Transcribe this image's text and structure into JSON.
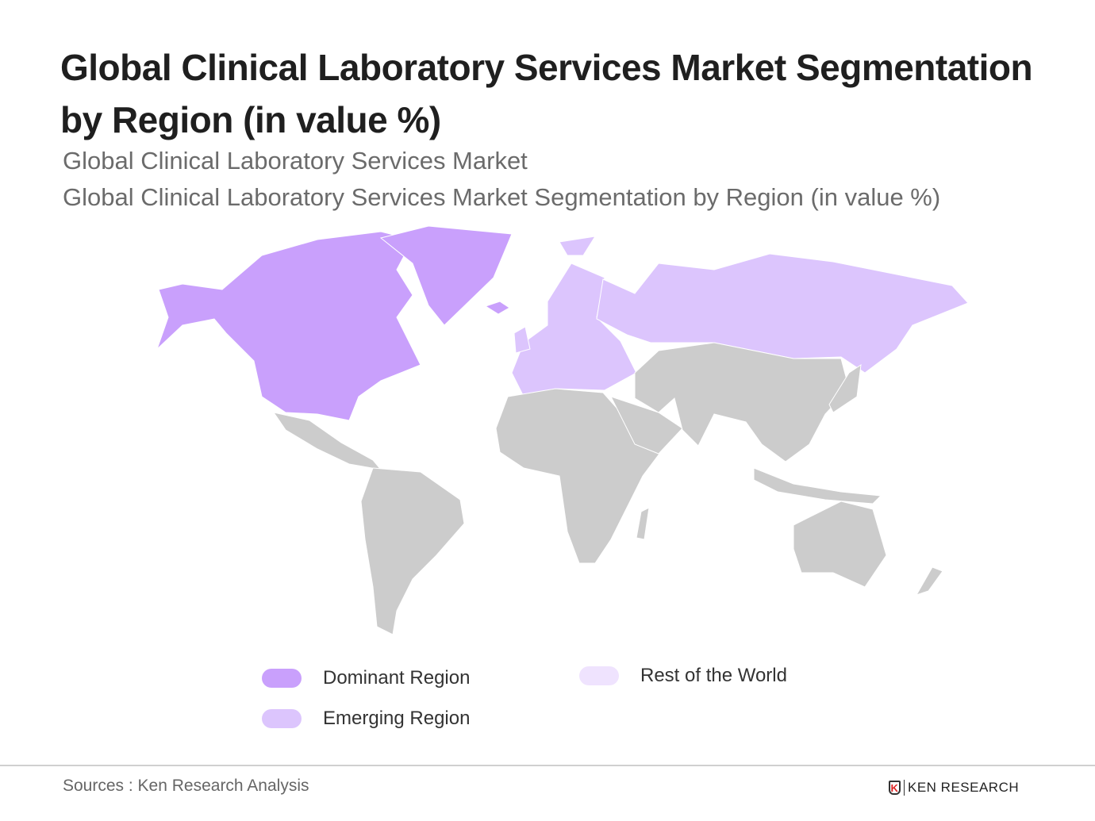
{
  "title": "Global Clinical Laboratory Services Market Segmentation by Region (in value %)",
  "subtitle_1": "Global Clinical Laboratory Services Market",
  "subtitle_2": "Global Clinical Laboratory Services Market Segmentation by Region (in value %)",
  "colors": {
    "dominant": "#c9a0fc",
    "emerging": "#dcc5fd",
    "rest": "#efe3fe",
    "other": "#cccccc"
  },
  "legend": [
    {
      "label": "Dominant Region",
      "color": "#c9a0fc"
    },
    {
      "label": "Emerging Region",
      "color": "#dcc5fd"
    },
    {
      "label": "Rest of the World",
      "color": "#efe3fe"
    }
  ],
  "regions": {
    "north_america": "dominant",
    "greenland": "dominant",
    "europe": "emerging",
    "russia": "emerging"
  },
  "source": "Sources : Ken Research Analysis",
  "logo_text": "KEN RESEARCH",
  "logo_mark": "K"
}
